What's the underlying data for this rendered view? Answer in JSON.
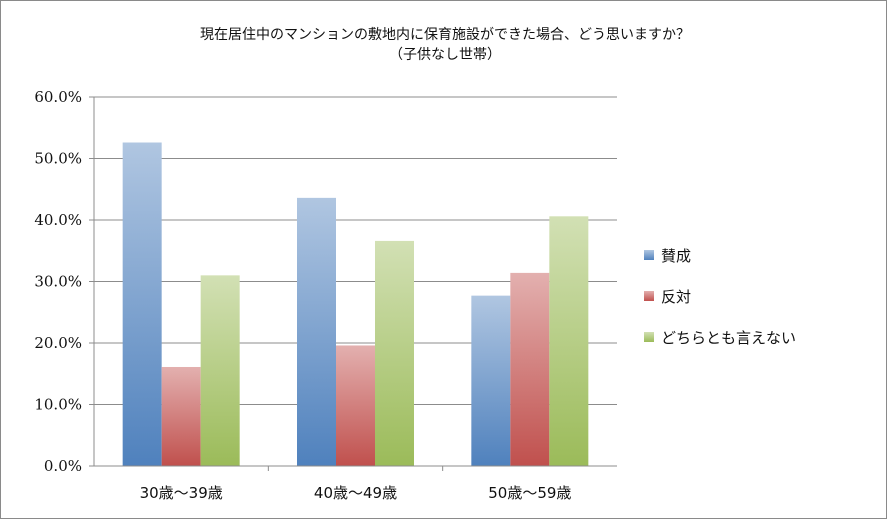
{
  "chart_data": {
    "type": "bar",
    "title": "現在居住中のマンションの敷地内に保育施設ができた場合、どう思いますか？",
    "subtitle": "（子供なし世帯）",
    "categories": [
      "30歳〜39歳",
      "40歳〜49歳",
      "50歳〜59歳"
    ],
    "series": [
      {
        "name": "賛成",
        "color": "#4f81bd",
        "values": [
          52.6,
          43.6,
          27.7
        ]
      },
      {
        "name": "反対",
        "color": "#c0504d",
        "values": [
          16.1,
          19.6,
          31.4
        ]
      },
      {
        "name": "どちらとも言えない",
        "color": "#9bbb59",
        "values": [
          31.0,
          36.6,
          40.6
        ]
      }
    ],
    "y_ticks": [
      "0.0%",
      "10.0%",
      "20.0%",
      "30.0%",
      "40.0%",
      "50.0%",
      "60.0%"
    ],
    "ylim": [
      0,
      60
    ],
    "grid": true,
    "legend_position": "right"
  }
}
